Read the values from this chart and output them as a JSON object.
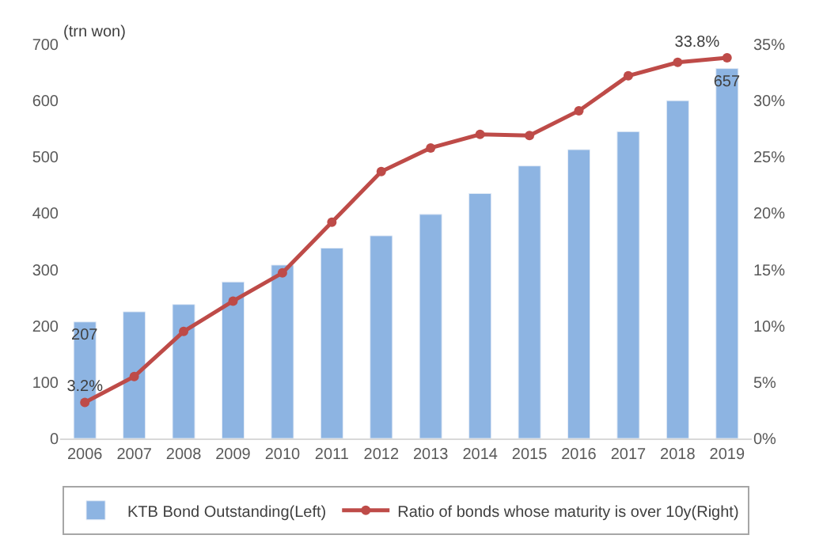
{
  "chart_data": {
    "type": "bar",
    "ylabel": "(trn won)",
    "categories": [
      "2006",
      "2007",
      "2008",
      "2009",
      "2010",
      "2011",
      "2012",
      "2013",
      "2014",
      "2015",
      "2016",
      "2017",
      "2018",
      "2019"
    ],
    "series": [
      {
        "name": "KTB Bond Outstanding(Left)",
        "color": "#8db4e2",
        "values": [
          207,
          225,
          238,
          278,
          308,
          338,
          360,
          398,
          435,
          484,
          513,
          545,
          600,
          657
        ],
        "value_labels": [
          "207",
          null,
          null,
          null,
          null,
          null,
          null,
          null,
          null,
          null,
          null,
          null,
          null,
          "657"
        ]
      },
      {
        "name": "Ratio of bonds whose maturity is over 10y(Right)",
        "type": "line",
        "axis": "y2",
        "color": "#be4b48",
        "marker": "circle",
        "values": [
          3.2,
          5.5,
          9.5,
          12.2,
          14.7,
          19.2,
          23.7,
          25.8,
          27.0,
          26.9,
          29.1,
          32.2,
          33.4,
          33.8
        ],
        "value_labels": [
          "3.2%",
          null,
          null,
          null,
          null,
          null,
          null,
          null,
          null,
          null,
          null,
          null,
          null,
          "33.8%"
        ]
      }
    ],
    "ylim": [
      0,
      700
    ],
    "yticks": [
      0,
      100,
      200,
      300,
      400,
      500,
      600,
      700
    ],
    "y2lim": [
      0,
      35
    ],
    "y2ticks": [
      {
        "value": 0,
        "label": "0%"
      },
      {
        "value": 5,
        "label": "5%"
      },
      {
        "value": 10,
        "label": "10%"
      },
      {
        "value": 15,
        "label": "15%"
      },
      {
        "value": 20,
        "label": "20%"
      },
      {
        "value": 25,
        "label": "25%"
      },
      {
        "value": 30,
        "label": "30%"
      },
      {
        "value": 35,
        "label": "35%"
      }
    ],
    "legend": "bottom"
  }
}
